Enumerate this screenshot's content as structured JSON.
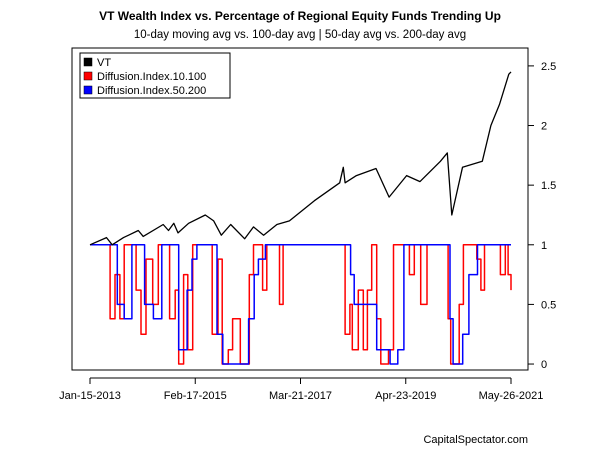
{
  "chart_data": {
    "type": "line",
    "title": "VT Wealth Index vs. Percentage of Regional Equity Funds Trending Up",
    "subtitle": "10-day moving avg vs. 100-day avg | 50-day avg vs. 200-day avg",
    "x_ticks": [
      "Jan-15-2013",
      "Feb-17-2015",
      "Mar-21-2017",
      "Apr-23-2019",
      "May-26-2021"
    ],
    "x_range": [
      "2013-01-15",
      "2021-05-26"
    ],
    "y_ticks": [
      "0",
      "0.5",
      "1",
      "1.5",
      "2",
      "2.5"
    ],
    "ylim": [
      -0.05,
      2.65
    ],
    "grid": false,
    "legend_position": "top-left",
    "series": [
      {
        "name": "VT",
        "color": "#000000",
        "points": [
          [
            "2013-01-15",
            1.0
          ],
          [
            "2013-05-15",
            1.06
          ],
          [
            "2013-06-25",
            1.0
          ],
          [
            "2013-09-15",
            1.06
          ],
          [
            "2013-12-31",
            1.12
          ],
          [
            "2014-02-05",
            1.07
          ],
          [
            "2014-06-30",
            1.17
          ],
          [
            "2014-08-07",
            1.12
          ],
          [
            "2014-09-15",
            1.18
          ],
          [
            "2014-10-15",
            1.1
          ],
          [
            "2014-12-31",
            1.18
          ],
          [
            "2015-05-01",
            1.25
          ],
          [
            "2015-07-01",
            1.2
          ],
          [
            "2015-08-25",
            1.08
          ],
          [
            "2015-11-01",
            1.17
          ],
          [
            "2016-02-11",
            1.05
          ],
          [
            "2016-04-15",
            1.15
          ],
          [
            "2016-06-27",
            1.08
          ],
          [
            "2016-10-01",
            1.17
          ],
          [
            "2016-12-31",
            1.2
          ],
          [
            "2017-06-30",
            1.37
          ],
          [
            "2017-12-31",
            1.52
          ],
          [
            "2018-01-26",
            1.65
          ],
          [
            "2018-02-08",
            1.52
          ],
          [
            "2018-05-01",
            1.58
          ],
          [
            "2018-09-20",
            1.64
          ],
          [
            "2018-12-24",
            1.4
          ],
          [
            "2019-04-30",
            1.58
          ],
          [
            "2019-08-05",
            1.53
          ],
          [
            "2019-12-31",
            1.7
          ],
          [
            "2020-02-19",
            1.77
          ],
          [
            "2020-03-23",
            1.25
          ],
          [
            "2020-06-08",
            1.65
          ],
          [
            "2020-10-30",
            1.7
          ],
          [
            "2020-12-31",
            2.0
          ],
          [
            "2021-03-04",
            2.18
          ],
          [
            "2021-05-10",
            2.43
          ],
          [
            "2021-05-26",
            2.45
          ]
        ]
      },
      {
        "name": "Diffusion.Index.10.100",
        "color": "#ff0000",
        "points": [
          [
            "2013-01-15",
            1.0
          ],
          [
            "2013-05-20",
            1.0
          ],
          [
            "2013-06-10",
            0.38
          ],
          [
            "2013-07-15",
            0.75
          ],
          [
            "2013-08-20",
            0.38
          ],
          [
            "2013-09-20",
            1.0
          ],
          [
            "2013-11-15",
            1.0
          ],
          [
            "2013-12-15",
            0.62
          ],
          [
            "2014-01-20",
            0.25
          ],
          [
            "2014-02-25",
            0.88
          ],
          [
            "2014-04-15",
            0.5
          ],
          [
            "2014-05-25",
            1.0
          ],
          [
            "2014-07-20",
            1.0
          ],
          [
            "2014-08-15",
            0.38
          ],
          [
            "2014-09-25",
            0.62
          ],
          [
            "2014-10-20",
            0.0
          ],
          [
            "2014-11-25",
            0.75
          ],
          [
            "2014-12-25",
            0.12
          ],
          [
            "2015-01-30",
            1.0
          ],
          [
            "2015-05-15",
            1.0
          ],
          [
            "2015-06-20",
            0.25
          ],
          [
            "2015-08-01",
            0.88
          ],
          [
            "2015-09-01",
            0.0
          ],
          [
            "2015-10-15",
            0.12
          ],
          [
            "2015-11-15",
            0.38
          ],
          [
            "2016-01-10",
            0.0
          ],
          [
            "2016-03-15",
            0.75
          ],
          [
            "2016-04-15",
            1.0
          ],
          [
            "2016-06-20",
            0.62
          ],
          [
            "2016-07-20",
            1.0
          ],
          [
            "2016-09-15",
            1.0
          ],
          [
            "2016-10-20",
            0.5
          ],
          [
            "2016-11-15",
            1.0
          ],
          [
            "2017-12-31",
            1.0
          ],
          [
            "2018-02-08",
            0.25
          ],
          [
            "2018-03-15",
            0.5
          ],
          [
            "2018-04-01",
            0.12
          ],
          [
            "2018-05-15",
            0.62
          ],
          [
            "2018-06-20",
            0.12
          ],
          [
            "2018-07-20",
            0.62
          ],
          [
            "2018-08-20",
            1.0
          ],
          [
            "2018-09-25",
            0.38
          ],
          [
            "2018-10-25",
            0.0
          ],
          [
            "2018-12-20",
            0.12
          ],
          [
            "2019-01-25",
            1.0
          ],
          [
            "2019-05-01",
            1.0
          ],
          [
            "2019-05-20",
            0.75
          ],
          [
            "2019-06-25",
            1.0
          ],
          [
            "2019-08-10",
            0.5
          ],
          [
            "2019-09-25",
            1.0
          ],
          [
            "2020-01-25",
            1.0
          ],
          [
            "2020-02-25",
            0.38
          ],
          [
            "2020-03-15",
            0.0
          ],
          [
            "2020-05-15",
            0.5
          ],
          [
            "2020-06-15",
            1.0
          ],
          [
            "2020-09-20",
            0.88
          ],
          [
            "2020-10-20",
            0.62
          ],
          [
            "2020-11-15",
            1.0
          ],
          [
            "2021-02-25",
            1.0
          ],
          [
            "2021-03-10",
            0.75
          ],
          [
            "2021-04-15",
            1.0
          ],
          [
            "2021-05-05",
            0.75
          ],
          [
            "2021-05-26",
            0.62
          ]
        ]
      },
      {
        "name": "Diffusion.Index.50.200",
        "color": "#0000ff",
        "points": [
          [
            "2013-01-15",
            1.0
          ],
          [
            "2013-06-25",
            1.0
          ],
          [
            "2013-08-01",
            0.5
          ],
          [
            "2013-09-20",
            0.38
          ],
          [
            "2013-11-15",
            1.0
          ],
          [
            "2014-02-15",
            0.5
          ],
          [
            "2014-04-20",
            0.38
          ],
          [
            "2014-06-20",
            1.0
          ],
          [
            "2014-08-20",
            1.0
          ],
          [
            "2014-10-20",
            0.12
          ],
          [
            "2014-12-20",
            0.62
          ],
          [
            "2015-01-25",
            0.88
          ],
          [
            "2015-03-01",
            1.0
          ],
          [
            "2015-06-25",
            1.0
          ],
          [
            "2015-07-25",
            0.25
          ],
          [
            "2015-09-05",
            0.0
          ],
          [
            "2015-12-31",
            0.0
          ],
          [
            "2016-03-10",
            0.38
          ],
          [
            "2016-04-20",
            0.75
          ],
          [
            "2016-05-20",
            0.88
          ],
          [
            "2016-07-10",
            1.0
          ],
          [
            "2017-12-31",
            1.0
          ],
          [
            "2018-03-20",
            0.75
          ],
          [
            "2018-04-15",
            0.5
          ],
          [
            "2018-07-25",
            0.5
          ],
          [
            "2018-09-25",
            0.12
          ],
          [
            "2018-12-31",
            0.0
          ],
          [
            "2019-02-25",
            0.12
          ],
          [
            "2019-04-10",
            1.0
          ],
          [
            "2019-08-25",
            1.0
          ],
          [
            "2019-12-15",
            1.0
          ],
          [
            "2020-03-10",
            0.38
          ],
          [
            "2020-04-01",
            0.0
          ],
          [
            "2020-06-10",
            0.25
          ],
          [
            "2020-07-25",
            0.75
          ],
          [
            "2020-09-25",
            1.0
          ],
          [
            "2021-05-26",
            1.0
          ]
        ]
      }
    ]
  },
  "footer": "CapitalSpectator.com"
}
